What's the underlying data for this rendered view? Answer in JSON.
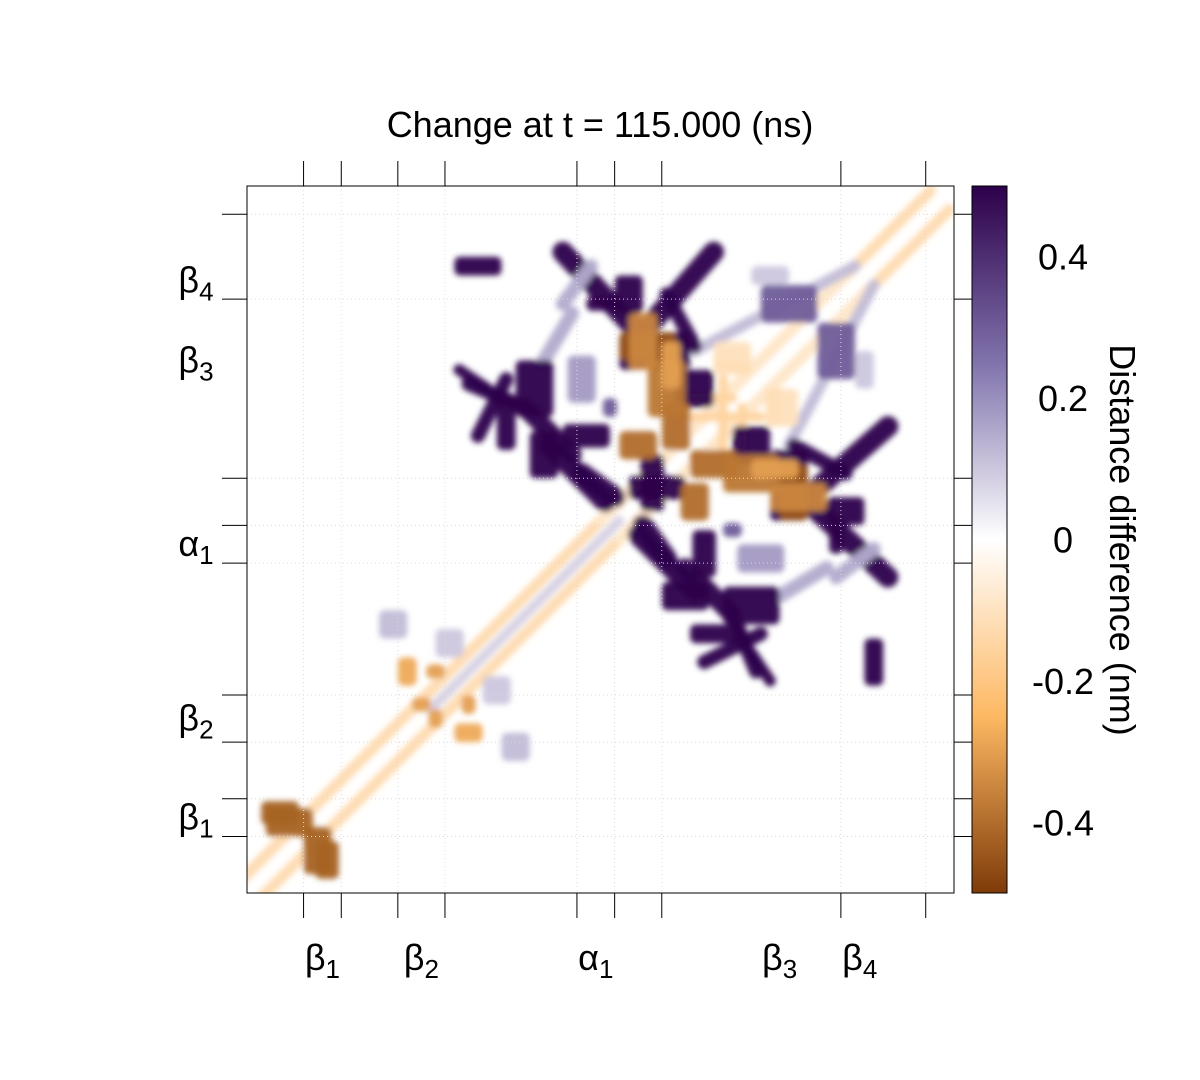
{
  "chart_data": {
    "type": "heatmap",
    "title": "Change at t = 115.000 (ns)",
    "xlabel": "",
    "ylabel": "",
    "colorbar": {
      "label": "Distance difference (nm)",
      "range": [
        -0.5,
        0.5
      ],
      "ticks": [
        {
          "value": 0.4,
          "label": "0.4"
        },
        {
          "value": 0.2,
          "label": "0.2"
        },
        {
          "value": 0,
          "label": "0"
        },
        {
          "value": -0.2,
          "label": "-0.2"
        },
        {
          "value": -0.4,
          "label": "-0.4"
        }
      ],
      "colors": {
        "high": "#2d004b",
        "mid_high": "#8073ac",
        "mid": "#ffffff",
        "mid_low": "#fdb863",
        "low": "#7f3b08"
      }
    },
    "residue_range": [
      1,
      75
    ],
    "secondary_structure": [
      {
        "base": "β",
        "sub": "1",
        "start": 6.5,
        "end": 10.5
      },
      {
        "base": "β",
        "sub": "2",
        "start": 16.5,
        "end": 21.5
      },
      {
        "base": "α",
        "sub": "1",
        "start": 35.5,
        "end": 39.5
      },
      {
        "base": "β",
        "sub": "3",
        "start": 54.5,
        "end": 59.5
      },
      {
        "base": "β",
        "sub": "4",
        "start": 60.5,
        "end": 70.5
      }
    ],
    "x_segment_bounds": [
      6.5,
      10.5,
      16.5,
      21.5,
      35.5,
      39.5,
      44.5,
      63.5,
      72.5
    ],
    "y_segment_bounds": [
      6.5,
      10.5,
      16.5,
      21.5,
      35.5,
      39.5,
      44.5,
      63.5,
      72.5
    ],
    "grid": "dotted at segment boundaries",
    "regions": [
      {
        "center": [
          5,
          8
        ],
        "size": [
          5,
          3
        ],
        "value": -0.42
      },
      {
        "center": [
          9,
          4
        ],
        "size": [
          2.5,
          4
        ],
        "value": -0.42
      },
      {
        "center": [
          19,
          20.5
        ],
        "size": [
          2,
          1.5
        ],
        "value": -0.3
      },
      {
        "center": [
          20.5,
          24
        ],
        "size": [
          2,
          1.5
        ],
        "value": -0.3
      },
      {
        "center": [
          24,
          17.5
        ],
        "size": [
          3,
          2
        ],
        "value": -0.28
      },
      {
        "center": [
          27,
          22
        ],
        "size": [
          3,
          3
        ],
        "value": 0.1
      },
      {
        "center": [
          29,
          16
        ],
        "size": [
          3,
          3
        ],
        "value": 0.12
      },
      {
        "center": [
          25,
          67
        ],
        "size": [
          5,
          2
        ],
        "value": 0.5
      },
      {
        "center": [
          31,
          54
        ],
        "size": [
          4,
          6
        ],
        "value": 0.5
      },
      {
        "center": [
          36.5,
          49
        ],
        "size": [
          5,
          2.5
        ],
        "value": 0.5
      },
      {
        "center": [
          41,
          64
        ],
        "size": [
          3,
          4
        ],
        "value": 0.5
      },
      {
        "center": [
          44,
          43.5
        ],
        "size": [
          6,
          2.5
        ],
        "value": 0.5
      },
      {
        "center": [
          45.5,
          58
        ],
        "size": [
          4,
          4
        ],
        "value": 0.5
      },
      {
        "center": [
          47,
          32
        ],
        "size": [
          5,
          3
        ],
        "value": 0.5
      },
      {
        "center": [
          50.5,
          28
        ],
        "size": [
          6,
          2
        ],
        "value": 0.5
      },
      {
        "center": [
          54,
          48
        ],
        "size": [
          4,
          4
        ],
        "value": 0.5
      },
      {
        "center": [
          58,
          41.5
        ],
        "size": [
          4,
          3
        ],
        "value": 0.5
      },
      {
        "center": [
          38,
          63
        ],
        "size": [
          3,
          1.5
        ],
        "value": 0.5
      },
      {
        "center": [
          55,
          36
        ],
        "size": [
          5,
          3
        ],
        "value": 0.18
      },
      {
        "center": [
          63,
          58
        ],
        "size": [
          4,
          6
        ],
        "value": 0.3
      },
      {
        "center": [
          42,
          48
        ],
        "size": [
          4,
          3
        ],
        "value": -0.4
      },
      {
        "center": [
          43,
          58.5
        ],
        "size": [
          6,
          3
        ],
        "value": -0.45
      },
      {
        "center": [
          46,
          50
        ],
        "size": [
          3,
          5
        ],
        "value": -0.4
      },
      {
        "center": [
          54,
          45
        ],
        "size": [
          6,
          4
        ],
        "value": -0.38
      },
      {
        "center": [
          59,
          42.5
        ],
        "size": [
          6,
          3
        ],
        "value": -0.35
      },
      {
        "center": [
          56.5,
          45.5
        ],
        "size": [
          5,
          2
        ],
        "value": -0.3
      },
      {
        "center": [
          57,
          52
        ],
        "size": [
          3,
          4
        ],
        "value": -0.12
      },
      {
        "center": [
          52,
          58
        ],
        "size": [
          4,
          2
        ],
        "value": -0.1
      },
      {
        "center": [
          56,
          66
        ],
        "size": [
          4,
          2
        ],
        "value": 0.1
      },
      {
        "center": [
          52,
          39
        ],
        "size": [
          2,
          1.5
        ],
        "value": 0.3
      }
    ],
    "bands": [
      {
        "from": [
          0,
          2
        ],
        "to": [
          73,
          75
        ],
        "width": 1.2,
        "value": -0.12
      },
      {
        "from": [
          2,
          0
        ],
        "to": [
          75,
          73
        ],
        "width": 1.2,
        "value": -0.12
      },
      {
        "from": [
          20,
          20
        ],
        "to": [
          40,
          40
        ],
        "width": 1.0,
        "value": 0.08
      },
      {
        "from": [
          40,
          38
        ],
        "to": [
          66,
          64
        ],
        "width": 1.0,
        "value": -0.08
      },
      {
        "from": [
          48,
          58
        ],
        "to": [
          65,
          67
        ],
        "width": 1.2,
        "value": 0.12
      },
      {
        "from": [
          43,
          60.5
        ],
        "to": [
          50,
          68.5
        ],
        "width": 2.2,
        "value": 0.5
      },
      {
        "from": [
          39.5,
          42.5
        ],
        "to": [
          36,
          45
        ],
        "width": 2.2,
        "value": 0.5
      },
      {
        "from": [
          60.5,
          41.5
        ],
        "to": [
          68.5,
          34
        ],
        "width": 2.2,
        "value": 0.5
      },
      {
        "from": [
          42,
          38.5
        ],
        "to": [
          48,
          32.5
        ],
        "width": 2.2,
        "value": 0.5
      },
      {
        "from": [
          24,
          54.5
        ],
        "to": [
          30,
          52
        ],
        "width": 1.5,
        "value": 0.5
      },
      {
        "from": [
          30,
          52
        ],
        "to": [
          35,
          47
        ],
        "width": 2.0,
        "value": 0.5
      },
      {
        "from": [
          49,
          25
        ],
        "to": [
          55,
          28
        ],
        "width": 1.5,
        "value": 0.5
      },
      {
        "from": [
          54,
          26
        ],
        "to": [
          56,
          23
        ],
        "width": 1.2,
        "value": 0.5
      },
      {
        "from": [
          58.5,
          48
        ],
        "to": [
          64,
          45
        ],
        "width": 1.5,
        "value": 0.5
      },
      {
        "from": [
          34,
          63
        ],
        "to": [
          37,
          67
        ],
        "width": 1.5,
        "value": 0.15
      },
      {
        "from": [
          57,
          32
        ],
        "to": [
          62,
          35
        ],
        "width": 1.5,
        "value": 0.15
      },
      {
        "from": [
          45,
          53
        ],
        "to": [
          52,
          53
        ],
        "width": 1.0,
        "value": -0.15
      },
      {
        "from": [
          51,
          46
        ],
        "to": [
          51,
          55
        ],
        "width": 1.0,
        "value": -0.15
      }
    ]
  }
}
